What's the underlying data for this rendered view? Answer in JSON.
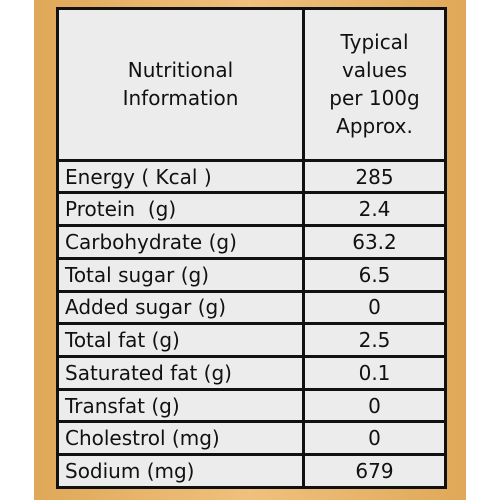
{
  "table": {
    "header": [
      [
        "Nutritional",
        "Information"
      ],
      [
        "Typical",
        "values",
        "per 100g",
        "Approx."
      ]
    ],
    "rows": [
      [
        "Energy ( Kcal )",
        "285"
      ],
      [
        "Protein  (g)",
        "2.4"
      ],
      [
        "Carbohydrate (g)",
        "63.2"
      ],
      [
        "Total sugar (g)",
        "6.5"
      ],
      [
        "Added sugar (g)",
        "0"
      ],
      [
        "Total fat (g)",
        "2.5"
      ],
      [
        "Saturated fat (g)",
        "0.1"
      ],
      [
        "Transfat (g)",
        "0"
      ],
      [
        "Cholestrol (mg)",
        "0"
      ],
      [
        "Sodium (mg)",
        "679"
      ]
    ]
  }
}
